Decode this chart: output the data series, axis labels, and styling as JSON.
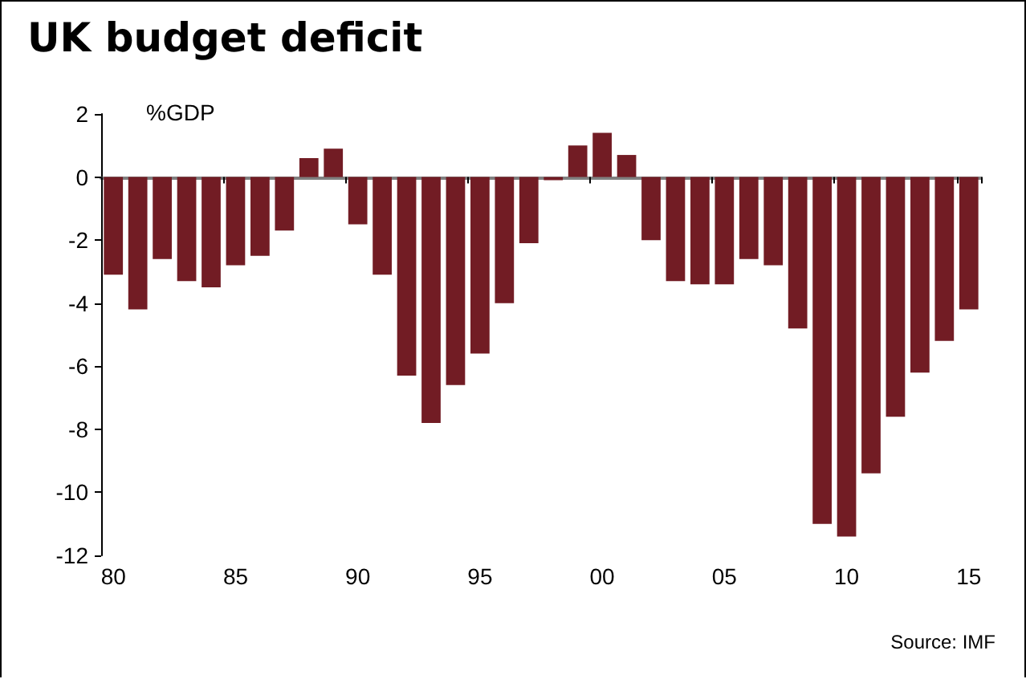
{
  "chart_data": {
    "type": "bar",
    "title": "UK budget deficit",
    "ylabel": "%GDP",
    "annotations": [
      "Source: IMF"
    ],
    "categories": [
      "80",
      null,
      null,
      null,
      null,
      "85",
      null,
      null,
      null,
      null,
      "90",
      null,
      null,
      null,
      null,
      "95",
      null,
      null,
      null,
      null,
      "00",
      null,
      null,
      null,
      null,
      "05",
      null,
      null,
      null,
      null,
      "10",
      null,
      null,
      null,
      null,
      "15"
    ],
    "values": [
      -3.1,
      -4.2,
      -2.6,
      -3.3,
      -3.5,
      -2.8,
      -2.5,
      -1.7,
      0.6,
      0.9,
      -1.5,
      -3.1,
      -6.3,
      -7.8,
      -6.6,
      -5.6,
      -4.0,
      -2.1,
      -0.1,
      1.0,
      1.4,
      0.7,
      -2.0,
      -3.3,
      -3.4,
      -3.4,
      -2.6,
      -2.8,
      -4.8,
      -11.0,
      -11.4,
      -9.4,
      -7.6,
      -6.2,
      -5.2,
      -4.2
    ],
    "color": "#721c24",
    "ylim": [
      -12,
      2
    ],
    "yticks": [
      -12,
      -10,
      -8,
      -6,
      -4,
      -2,
      0,
      2
    ]
  }
}
